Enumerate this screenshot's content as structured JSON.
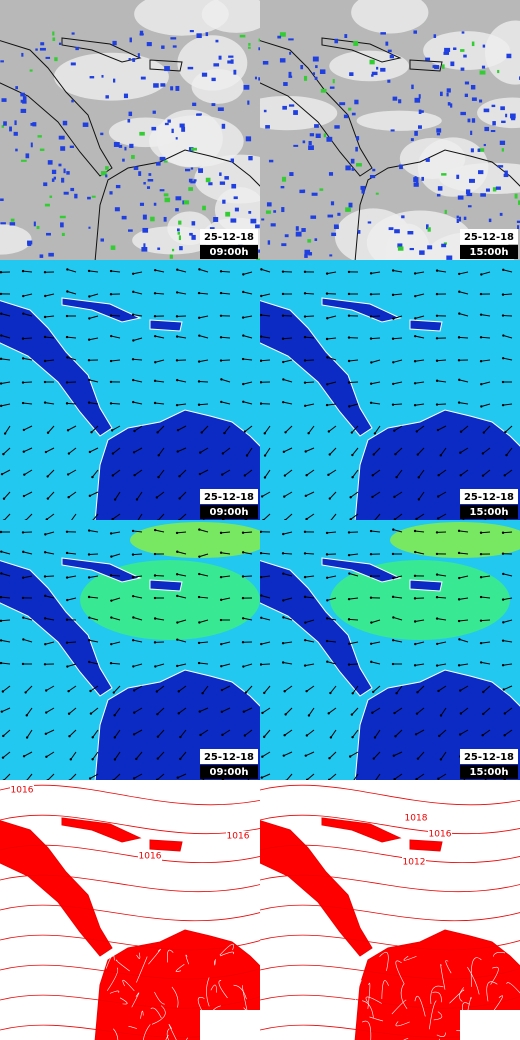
{
  "rows": [
    {
      "panels": [
        {
          "date": "25-12-18",
          "time": "09:00h"
        },
        {
          "date": "25-12-18",
          "time": "15:00h"
        }
      ]
    },
    {
      "panels": [
        {
          "date": "25-12-18",
          "time": "09:00h"
        },
        {
          "date": "25-12-18",
          "time": "15:00h"
        }
      ]
    },
    {
      "panels": [
        {
          "date": "25-12-18",
          "time": "09:00h"
        },
        {
          "date": "25-12-18",
          "time": "15:00h"
        }
      ]
    },
    {
      "panels": [
        {
          "contour_labels": [
            "1016",
            "1016",
            "1016"
          ]
        },
        {
          "contour_labels": [
            "1018",
            "1016",
            "1012"
          ]
        }
      ]
    }
  ]
}
